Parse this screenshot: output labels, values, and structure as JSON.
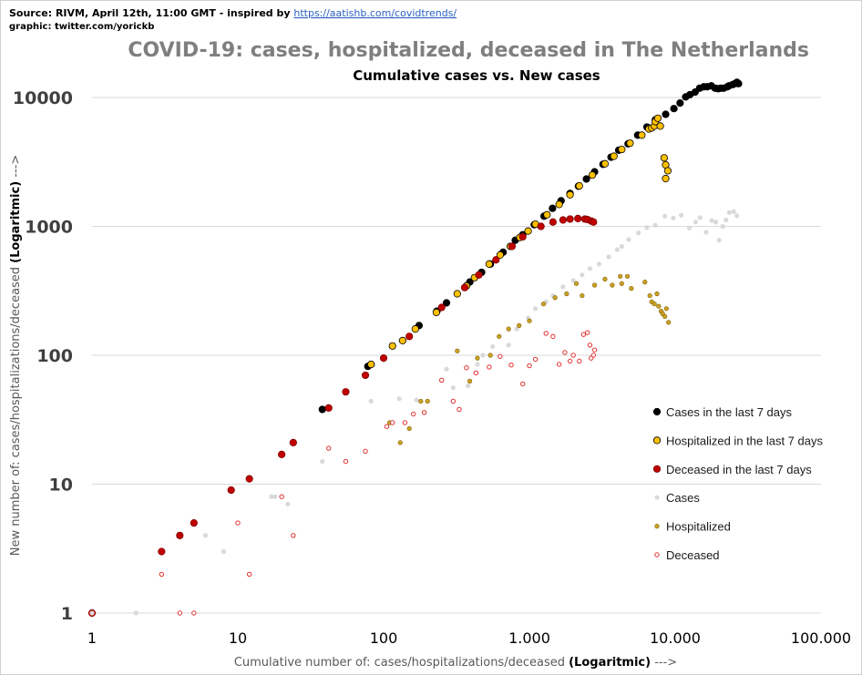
{
  "source": {
    "prefix": "Source: RIVM, April 12th, 11:00 GMT  - inspired by ",
    "link": "https://aatishb.com/covidtrends/",
    "graphic": "graphic: twitter.com/yorickb"
  },
  "chart_data": {
    "type": "scatter",
    "title": "COVID-19: cases, hospitalized, deceased in The Netherlands",
    "subtitle": "Cumulative cases vs. New cases",
    "xlabel_prefix": "Cumulative number of: cases/hospitalizations/deceased ",
    "xlabel_bold": "(Logaritmic)",
    "xlabel_suffix": " --->",
    "ylabel_prefix": "New  number of: cases/hospitalizations/deceased ",
    "ylabel_bold": "(Logaritmic)",
    "ylabel_suffix": " --->",
    "x_scale": "log",
    "y_scale": "log",
    "xlim": [
      1,
      100000
    ],
    "ylim": [
      1,
      10000
    ],
    "x_ticks": [
      {
        "value": 1,
        "label": "1"
      },
      {
        "value": 10,
        "label": "10"
      },
      {
        "value": 100,
        "label": "100"
      },
      {
        "value": 1000,
        "label": "1.000"
      },
      {
        "value": 10000,
        "label": "10.000"
      },
      {
        "value": 100000,
        "label": "100.000"
      }
    ],
    "y_ticks": [
      {
        "value": 1,
        "label": "1"
      },
      {
        "value": 10,
        "label": "10"
      },
      {
        "value": 100,
        "label": "100"
      },
      {
        "value": 1000,
        "label": "1000"
      },
      {
        "value": 10000,
        "label": "10000"
      }
    ],
    "grid": "horizontal",
    "legend_position": "right",
    "series": [
      {
        "name": "Cases in the last 7 days",
        "style": "filled-large",
        "color": "#000000",
        "stroke": "#000000",
        "points": [
          [
            38,
            38
          ],
          [
            78,
            82
          ],
          [
            82,
            85
          ],
          [
            175,
            170
          ],
          [
            232,
            220
          ],
          [
            270,
            255
          ],
          [
            390,
            370
          ],
          [
            470,
            440
          ],
          [
            540,
            510
          ],
          [
            660,
            630
          ],
          [
            800,
            780
          ],
          [
            900,
            860
          ],
          [
            1080,
            1030
          ],
          [
            1260,
            1200
          ],
          [
            1440,
            1380
          ],
          [
            1650,
            1580
          ],
          [
            1900,
            1800
          ],
          [
            2170,
            2050
          ],
          [
            2460,
            2330
          ],
          [
            2800,
            2650
          ],
          [
            3200,
            3030
          ],
          [
            3630,
            3440
          ],
          [
            4100,
            3900
          ],
          [
            4750,
            4370
          ],
          [
            5530,
            5100
          ],
          [
            6400,
            5900
          ],
          [
            7300,
            6700
          ],
          [
            8600,
            7400
          ],
          [
            9800,
            8200
          ],
          [
            10800,
            9050
          ],
          [
            11800,
            10100
          ],
          [
            12600,
            10500
          ],
          [
            13700,
            11000
          ],
          [
            14700,
            11800
          ],
          [
            15700,
            12100
          ],
          [
            16600,
            12100
          ],
          [
            17700,
            12300
          ],
          [
            18800,
            11800
          ],
          [
            19700,
            11700
          ],
          [
            20500,
            11800
          ],
          [
            21500,
            11800
          ],
          [
            22800,
            12100
          ],
          [
            23400,
            12300
          ],
          [
            24800,
            12600
          ],
          [
            25700,
            12800
          ],
          [
            26500,
            13100
          ],
          [
            27200,
            12800
          ]
        ]
      },
      {
        "name": "Hospitalized in the last 7 days",
        "style": "filled-large",
        "color": "#ffc000",
        "stroke": "#000000",
        "points": [
          [
            82,
            85
          ],
          [
            115,
            118
          ],
          [
            135,
            130
          ],
          [
            165,
            160
          ],
          [
            230,
            215
          ],
          [
            320,
            300
          ],
          [
            370,
            345
          ],
          [
            420,
            400
          ],
          [
            530,
            510
          ],
          [
            630,
            600
          ],
          [
            740,
            700
          ],
          [
            860,
            820
          ],
          [
            980,
            920
          ],
          [
            1100,
            1040
          ],
          [
            1320,
            1230
          ],
          [
            1600,
            1480
          ],
          [
            1900,
            1760
          ],
          [
            2200,
            2060
          ],
          [
            2700,
            2500
          ],
          [
            3300,
            3060
          ],
          [
            3800,
            3500
          ],
          [
            4300,
            3950
          ],
          [
            4900,
            4420
          ],
          [
            5900,
            5100
          ],
          [
            6600,
            5700
          ],
          [
            6900,
            5800
          ],
          [
            7200,
            6000
          ],
          [
            7300,
            6500
          ],
          [
            7600,
            6900
          ],
          [
            7900,
            6000
          ],
          [
            8400,
            3400
          ],
          [
            8600,
            3000
          ],
          [
            8900,
            2700
          ],
          [
            8600,
            2350
          ]
        ]
      },
      {
        "name": "Deceased  in the last 7 days",
        "style": "filled-large",
        "color": "#c00000",
        "stroke": "#7f0000",
        "points": [
          [
            1,
            1
          ],
          [
            3,
            3
          ],
          [
            4,
            4
          ],
          [
            5,
            5
          ],
          [
            9,
            9
          ],
          [
            12,
            11
          ],
          [
            20,
            17
          ],
          [
            24,
            21
          ],
          [
            42,
            39
          ],
          [
            55,
            52
          ],
          [
            75,
            70
          ],
          [
            100,
            95
          ],
          [
            150,
            140
          ],
          [
            250,
            235
          ],
          [
            360,
            335
          ],
          [
            450,
            420
          ],
          [
            590,
            550
          ],
          [
            760,
            700
          ],
          [
            900,
            830
          ],
          [
            1200,
            1000
          ],
          [
            1450,
            1080
          ],
          [
            1700,
            1120
          ],
          [
            1900,
            1140
          ],
          [
            2150,
            1150
          ],
          [
            2400,
            1140
          ],
          [
            2500,
            1130
          ],
          [
            2650,
            1100
          ],
          [
            2750,
            1080
          ]
        ]
      },
      {
        "name": "Cases",
        "style": "filled-small",
        "color": "#d9d9d9",
        "stroke": "#d9d9d9",
        "points": [
          [
            1,
            1
          ],
          [
            2,
            1
          ],
          [
            6,
            4
          ],
          [
            8,
            3
          ],
          [
            17,
            8
          ],
          [
            18,
            8
          ],
          [
            22,
            7
          ],
          [
            38,
            15
          ],
          [
            82,
            44
          ],
          [
            128,
            46
          ],
          [
            168,
            45
          ],
          [
            270,
            78
          ],
          [
            300,
            56
          ],
          [
            380,
            58
          ],
          [
            440,
            85
          ],
          [
            480,
            100
          ],
          [
            560,
            117
          ],
          [
            720,
            120
          ],
          [
            820,
            160
          ],
          [
            980,
            195
          ],
          [
            1100,
            230
          ],
          [
            1300,
            260
          ],
          [
            1450,
            290
          ],
          [
            1700,
            340
          ],
          [
            2000,
            380
          ],
          [
            2300,
            420
          ],
          [
            2600,
            470
          ],
          [
            3000,
            510
          ],
          [
            3500,
            580
          ],
          [
            4000,
            660
          ],
          [
            4300,
            700
          ],
          [
            4800,
            790
          ],
          [
            5600,
            890
          ],
          [
            6400,
            980
          ],
          [
            7300,
            1020
          ],
          [
            8500,
            1200
          ],
          [
            9700,
            1160
          ],
          [
            11000,
            1220
          ],
          [
            12500,
            970
          ],
          [
            13800,
            1080
          ],
          [
            14800,
            1170
          ],
          [
            16300,
            900
          ],
          [
            17800,
            1110
          ],
          [
            19000,
            1080
          ],
          [
            20000,
            780
          ],
          [
            21200,
            1000
          ],
          [
            22300,
            1120
          ],
          [
            23500,
            1280
          ],
          [
            25200,
            1300
          ],
          [
            26500,
            1210
          ]
        ]
      },
      {
        "name": "Hospitalized",
        "style": "filled-small",
        "color": "#c9a227",
        "stroke": "#806000",
        "points": [
          [
            110,
            30
          ],
          [
            130,
            21
          ],
          [
            150,
            27
          ],
          [
            180,
            44
          ],
          [
            200,
            44
          ],
          [
            320,
            108
          ],
          [
            390,
            63
          ],
          [
            440,
            95
          ],
          [
            540,
            100
          ],
          [
            620,
            140
          ],
          [
            720,
            160
          ],
          [
            850,
            170
          ],
          [
            1000,
            185
          ],
          [
            1250,
            250
          ],
          [
            1500,
            280
          ],
          [
            1800,
            300
          ],
          [
            2100,
            360
          ],
          [
            2300,
            290
          ],
          [
            2800,
            350
          ],
          [
            3300,
            390
          ],
          [
            3700,
            350
          ],
          [
            4200,
            410
          ],
          [
            4700,
            410
          ],
          [
            4300,
            360
          ],
          [
            5000,
            330
          ],
          [
            6200,
            370
          ],
          [
            6700,
            290
          ],
          [
            6900,
            260
          ],
          [
            7200,
            250
          ],
          [
            7500,
            300
          ],
          [
            7700,
            240
          ],
          [
            8000,
            220
          ],
          [
            8200,
            210
          ],
          [
            8500,
            200
          ],
          [
            8700,
            230
          ],
          [
            9000,
            180
          ]
        ]
      },
      {
        "name": "Deceased",
        "style": "hollow-small",
        "color": "#ffffff",
        "stroke": "#e03030",
        "points": [
          [
            3,
            2
          ],
          [
            4,
            1
          ],
          [
            5,
            1
          ],
          [
            10,
            5
          ],
          [
            12,
            2
          ],
          [
            20,
            8
          ],
          [
            24,
            4
          ],
          [
            42,
            19
          ],
          [
            55,
            15
          ],
          [
            75,
            18
          ],
          [
            105,
            28
          ],
          [
            115,
            30
          ],
          [
            140,
            30
          ],
          [
            160,
            35
          ],
          [
            190,
            36
          ],
          [
            250,
            64
          ],
          [
            300,
            44
          ],
          [
            330,
            38
          ],
          [
            370,
            80
          ],
          [
            430,
            73
          ],
          [
            530,
            81
          ],
          [
            630,
            98
          ],
          [
            750,
            84
          ],
          [
            900,
            60
          ],
          [
            1000,
            83
          ],
          [
            1100,
            93
          ],
          [
            1300,
            148
          ],
          [
            1450,
            140
          ],
          [
            1600,
            85
          ],
          [
            1750,
            105
          ],
          [
            1900,
            90
          ],
          [
            2000,
            100
          ],
          [
            2200,
            90
          ],
          [
            2350,
            145
          ],
          [
            2500,
            150
          ],
          [
            2600,
            120
          ],
          [
            2750,
            100
          ],
          [
            2800,
            110
          ],
          [
            2650,
            95
          ]
        ]
      }
    ]
  }
}
